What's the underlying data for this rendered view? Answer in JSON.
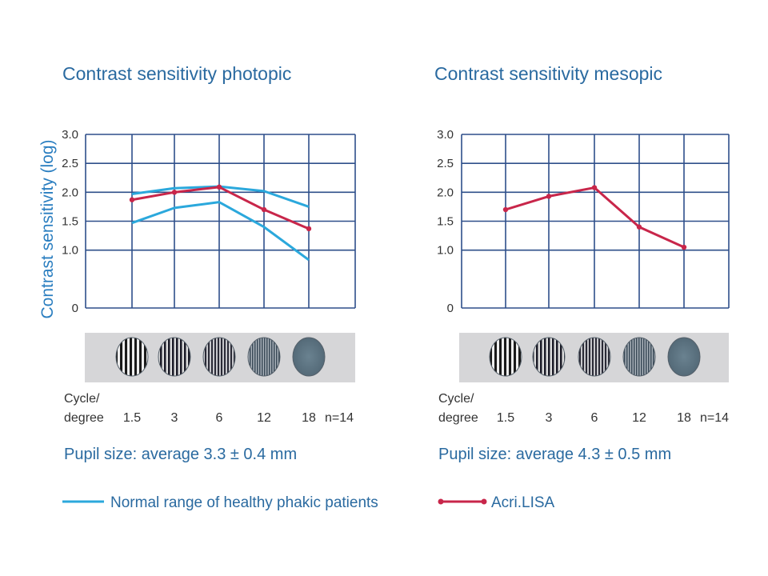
{
  "colors": {
    "normal_range": "#2ba8dc",
    "acri_lisa": "#c8264a",
    "grid": "#2e4f8a",
    "strip_bg": "#d6d6d8"
  },
  "legend": {
    "normal_label": "Normal range of healthy phakic patients",
    "acri_label": "Acri.LISA"
  },
  "chart_data": [
    {
      "type": "line",
      "title": "Contrast sensitivity photopic",
      "ylabel": "Contrast sensitivity (log)",
      "xlabel_line1": "Cycle/",
      "xlabel_line2": "degree",
      "categories": [
        "1.5",
        "3",
        "6",
        "12",
        "18"
      ],
      "n_label": "n=14",
      "ylim": [
        0,
        3.0
      ],
      "y_ticks": [
        "0",
        "1.0",
        "1.5",
        "2.0",
        "2.5",
        "3.0"
      ],
      "note": "Pupil size: average 3.3 ± 0.4 mm",
      "series": [
        {
          "key": "normal_upper",
          "values": [
            1.97,
            2.07,
            2.1,
            2.02,
            1.75
          ]
        },
        {
          "key": "normal_lower",
          "values": [
            1.47,
            1.73,
            1.83,
            1.4,
            0.83
          ]
        },
        {
          "key": "acri",
          "values": [
            1.87,
            2.0,
            2.09,
            1.7,
            1.37
          ]
        }
      ]
    },
    {
      "type": "line",
      "title": "Contrast sensitivity mesopic",
      "ylabel": "",
      "xlabel_line1": "Cycle/",
      "xlabel_line2": "degree",
      "categories": [
        "1.5",
        "3",
        "6",
        "12",
        "18"
      ],
      "n_label": "n=14",
      "ylim": [
        0,
        3.0
      ],
      "y_ticks": [
        "0",
        "1.0",
        "1.5",
        "2.0",
        "2.5",
        "3.0"
      ],
      "note": "Pupil size: average 4.3 ± 0.5 mm",
      "series": [
        {
          "key": "acri",
          "values": [
            1.7,
            1.93,
            2.08,
            1.4,
            1.05
          ]
        }
      ]
    }
  ]
}
